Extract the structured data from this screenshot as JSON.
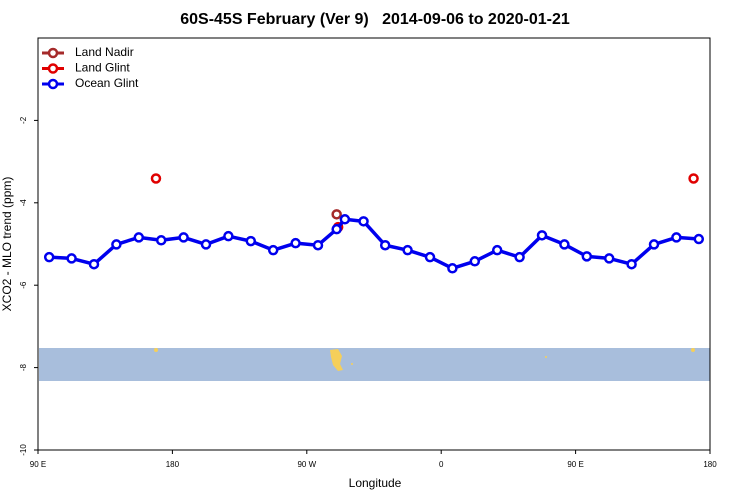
{
  "chart_data": {
    "type": "line",
    "title": "60S-45S February (Ver 9)   2014-09-06 to 2020-01-21",
    "x_label": "Longitude",
    "y_label": "XCO2 - MLO trend (ppm)",
    "xlim": [
      90,
      540
    ],
    "xticks": [
      {
        "value": 90,
        "label": "90 E"
      },
      180,
      {
        "value": 270,
        "label": "90 W"
      },
      {
        "value": 360,
        "label": "0"
      },
      {
        "value": 450,
        "label": "90 E"
      },
      {
        "value": 540,
        "label": "180"
      }
    ],
    "ylim": [
      -10,
      0
    ],
    "yticks": [
      -10,
      -8,
      -6,
      -4,
      -2
    ],
    "legend": "top-left",
    "series": [
      {
        "name": "Land Nadir",
        "color": "#a52a2a",
        "mode": "markers",
        "x": [
          290
        ],
        "values": [
          -4.28
        ]
      },
      {
        "name": "Land Glint",
        "color": "#e00000",
        "mode": "markers",
        "x": [
          169,
          291,
          529
        ],
        "values": [
          -3.41,
          -4.59,
          -3.41
        ]
      },
      {
        "name": "Ocean Glint",
        "color": "#0000ee",
        "mode": "lines+markers",
        "x": [
          97.5,
          112.5,
          127.5,
          142.5,
          157.5,
          172.5,
          187.5,
          202.5,
          217.5,
          232.5,
          247.5,
          262.5,
          277.5,
          290,
          295.5,
          308,
          322.5,
          337.5,
          352.5,
          367.5,
          382.5,
          397.5,
          412.5,
          427.5,
          442.5,
          457.5,
          472.5,
          487.5,
          502.5,
          517.5,
          532.5
        ],
        "values": [
          -5.32,
          -5.35,
          -5.49,
          -5.01,
          -4.84,
          -4.91,
          -4.84,
          -5.01,
          -4.81,
          -4.93,
          -5.15,
          -4.98,
          -5.03,
          -4.64,
          -4.4,
          -4.45,
          -5.03,
          -5.15,
          -5.32,
          -5.59,
          -5.42,
          -5.15,
          -5.32,
          -4.79,
          -5.01,
          -5.3,
          -5.35,
          -5.49,
          -5.01,
          -4.84,
          -4.88
        ]
      }
    ]
  }
}
